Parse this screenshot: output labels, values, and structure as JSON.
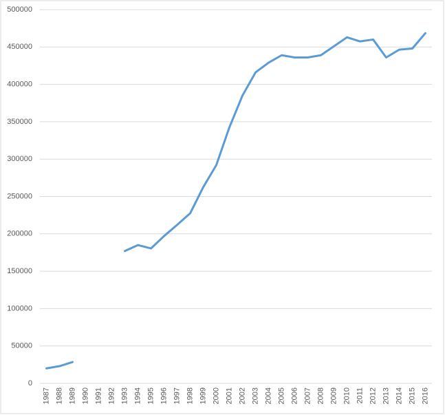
{
  "chart_data": {
    "type": "line",
    "categories": [
      "1987",
      "1988",
      "1989",
      "1990",
      "1991",
      "1992",
      "1993",
      "1994",
      "1995",
      "1996",
      "1997",
      "1998",
      "1999",
      "2000",
      "2001",
      "2002",
      "2003",
      "2004",
      "2005",
      "2006",
      "2007",
      "2008",
      "2009",
      "2010",
      "2011",
      "2012",
      "2013",
      "2014",
      "2015",
      "2016"
    ],
    "series": [
      {
        "color": "#5b9bd5",
        "values": [
          20000,
          23000,
          28500,
          null,
          null,
          null,
          177000,
          185000,
          180500,
          197000,
          212000,
          227500,
          262500,
          292000,
          342500,
          385000,
          416000,
          429000,
          439000,
          436000,
          436000,
          439000,
          451000,
          463000,
          457500,
          460000,
          436000,
          446500,
          448000,
          468500
        ]
      }
    ],
    "ylim": [
      0,
      500000
    ],
    "yticks": [
      0,
      50000,
      100000,
      150000,
      200000,
      250000,
      300000,
      350000,
      400000,
      450000,
      500000
    ],
    "grid": true
  }
}
